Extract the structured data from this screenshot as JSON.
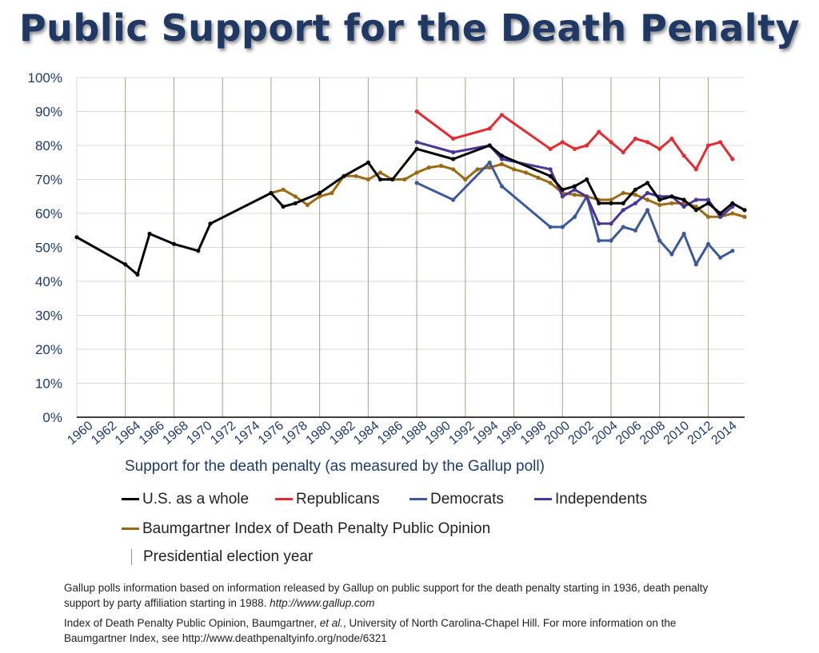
{
  "chart_data": {
    "type": "line",
    "title": "Public Support for the Death Penalty",
    "xlabel": "Support for the death penalty (as measured by the Gallup poll)",
    "ylabel": "",
    "x_ticks": [
      "1960",
      "1962",
      "1964",
      "1966",
      "1968",
      "1970",
      "1972",
      "1974",
      "1976",
      "1978",
      "1980",
      "1982",
      "1984",
      "1986",
      "1988",
      "1990",
      "1992",
      "1994",
      "1996",
      "1998",
      "2000",
      "2002",
      "2004",
      "2006",
      "2008",
      "2010",
      "2012",
      "2014"
    ],
    "y_ticks": [
      "0%",
      "10%",
      "20%",
      "30%",
      "40%",
      "50%",
      "60%",
      "70%",
      "80%",
      "90%",
      "100%"
    ],
    "xlim": [
      1960,
      2014
    ],
    "ylim": [
      0,
      100
    ],
    "election_years": [
      1964,
      1968,
      1972,
      1976,
      1980,
      1984,
      1988,
      1992,
      1996,
      2000,
      2004,
      2008,
      2012
    ],
    "series": [
      {
        "name": "U.S. as a whole",
        "color": "#000000",
        "points": [
          [
            1960,
            53
          ],
          [
            1964,
            45
          ],
          [
            1965,
            42
          ],
          [
            1966,
            54
          ],
          [
            1968,
            51
          ],
          [
            1970,
            49
          ],
          [
            1971,
            57
          ],
          [
            1976,
            66
          ],
          [
            1977,
            62
          ],
          [
            1978,
            63
          ],
          [
            1980,
            66
          ],
          [
            1982,
            71
          ],
          [
            1984,
            75
          ],
          [
            1985,
            70
          ],
          [
            1986,
            70
          ],
          [
            1988,
            79
          ],
          [
            1991,
            76
          ],
          [
            1994,
            80
          ],
          [
            1995,
            77
          ],
          [
            1999,
            71
          ],
          [
            2000,
            67
          ],
          [
            2001,
            68
          ],
          [
            2002,
            70
          ],
          [
            2003,
            63
          ],
          [
            2004,
            63
          ],
          [
            2005,
            63
          ],
          [
            2006,
            67
          ],
          [
            2007,
            69
          ],
          [
            2008,
            64
          ],
          [
            2009,
            65
          ],
          [
            2010,
            64
          ],
          [
            2011,
            61
          ],
          [
            2012,
            63
          ],
          [
            2013,
            60
          ],
          [
            2014,
            63
          ],
          [
            2015,
            61
          ]
        ]
      },
      {
        "name": "Republicans",
        "color": "#e32b33",
        "points": [
          [
            1988,
            90
          ],
          [
            1991,
            82
          ],
          [
            1994,
            85
          ],
          [
            1995,
            89
          ],
          [
            1999,
            79
          ],
          [
            2000,
            81
          ],
          [
            2001,
            79
          ],
          [
            2002,
            80
          ],
          [
            2003,
            84
          ],
          [
            2004,
            81
          ],
          [
            2005,
            78
          ],
          [
            2006,
            82
          ],
          [
            2007,
            81
          ],
          [
            2008,
            79
          ],
          [
            2009,
            82
          ],
          [
            2010,
            77
          ],
          [
            2011,
            73
          ],
          [
            2012,
            80
          ],
          [
            2013,
            81
          ],
          [
            2014,
            76
          ]
        ]
      },
      {
        "name": "Democrats",
        "color": "#3c5a99",
        "points": [
          [
            1988,
            69
          ],
          [
            1991,
            64
          ],
          [
            1994,
            75
          ],
          [
            1995,
            68
          ],
          [
            1999,
            56
          ],
          [
            2000,
            56
          ],
          [
            2001,
            59
          ],
          [
            2002,
            65
          ],
          [
            2003,
            52
          ],
          [
            2004,
            52
          ],
          [
            2005,
            56
          ],
          [
            2006,
            55
          ],
          [
            2007,
            61
          ],
          [
            2008,
            52
          ],
          [
            2009,
            48
          ],
          [
            2010,
            54
          ],
          [
            2011,
            45
          ],
          [
            2012,
            51
          ],
          [
            2013,
            47
          ],
          [
            2014,
            49
          ]
        ]
      },
      {
        "name": "Independents",
        "color": "#4b3596",
        "points": [
          [
            1988,
            81
          ],
          [
            1991,
            78
          ],
          [
            1994,
            80
          ],
          [
            1995,
            76
          ],
          [
            1999,
            73
          ],
          [
            2000,
            65
          ],
          [
            2001,
            67
          ],
          [
            2002,
            65
          ],
          [
            2003,
            57
          ],
          [
            2004,
            57
          ],
          [
            2005,
            61
          ],
          [
            2006,
            63
          ],
          [
            2007,
            66
          ],
          [
            2008,
            65
          ],
          [
            2009,
            65
          ],
          [
            2010,
            62
          ],
          [
            2011,
            64
          ],
          [
            2012,
            64
          ],
          [
            2013,
            59
          ],
          [
            2014,
            62
          ]
        ]
      },
      {
        "name": "Baumgartner Index of Death Penalty Public Opinion",
        "color": "#9b6a12",
        "points": [
          [
            1976,
            66
          ],
          [
            1977,
            67
          ],
          [
            1978,
            65
          ],
          [
            1979,
            62.5
          ],
          [
            1980,
            65
          ],
          [
            1981,
            66
          ],
          [
            1982,
            71
          ],
          [
            1983,
            71
          ],
          [
            1984,
            70
          ],
          [
            1985,
            72
          ],
          [
            1986,
            70
          ],
          [
            1987,
            70
          ],
          [
            1988,
            72
          ],
          [
            1989,
            73.5
          ],
          [
            1990,
            74
          ],
          [
            1991,
            73
          ],
          [
            1992,
            70
          ],
          [
            1993,
            73
          ],
          [
            1994,
            73.5
          ],
          [
            1995,
            74.5
          ],
          [
            1996,
            73
          ],
          [
            1997,
            72
          ],
          [
            1998,
            70.5
          ],
          [
            1999,
            69
          ],
          [
            2000,
            66
          ],
          [
            2001,
            65.5
          ],
          [
            2002,
            65
          ],
          [
            2003,
            64
          ],
          [
            2004,
            64
          ],
          [
            2005,
            66
          ],
          [
            2006,
            65.5
          ],
          [
            2007,
            64
          ],
          [
            2008,
            62.5
          ],
          [
            2009,
            63
          ],
          [
            2010,
            63
          ],
          [
            2011,
            62
          ],
          [
            2012,
            59
          ],
          [
            2013,
            59
          ],
          [
            2014,
            60
          ],
          [
            2015,
            59
          ]
        ]
      }
    ]
  },
  "legend": {
    "us": "U.S. as a whole",
    "rep": "Republicans",
    "dem": "Democrats",
    "ind": "Independents",
    "baum": "Baumgartner Index of Death Penalty Public Opinion",
    "election": "Presidential election year"
  },
  "footnotes": {
    "gallup_text": "Gallup polls information based on information released by Gallup  on public support for the death penalty starting in 1936, death penalty support by party affiliation starting in 1988.",
    "gallup_url": "http://www.gallup.com",
    "index_pre": "Index of Death Penalty Public Opinion, Baumgartner,",
    "index_etal": "et al.",
    "index_post": ", University of North Carolina-Chapel Hill. For more information on the Baumgartner Index, see http://www.deathpenaltyinfo.org/node/6321"
  }
}
